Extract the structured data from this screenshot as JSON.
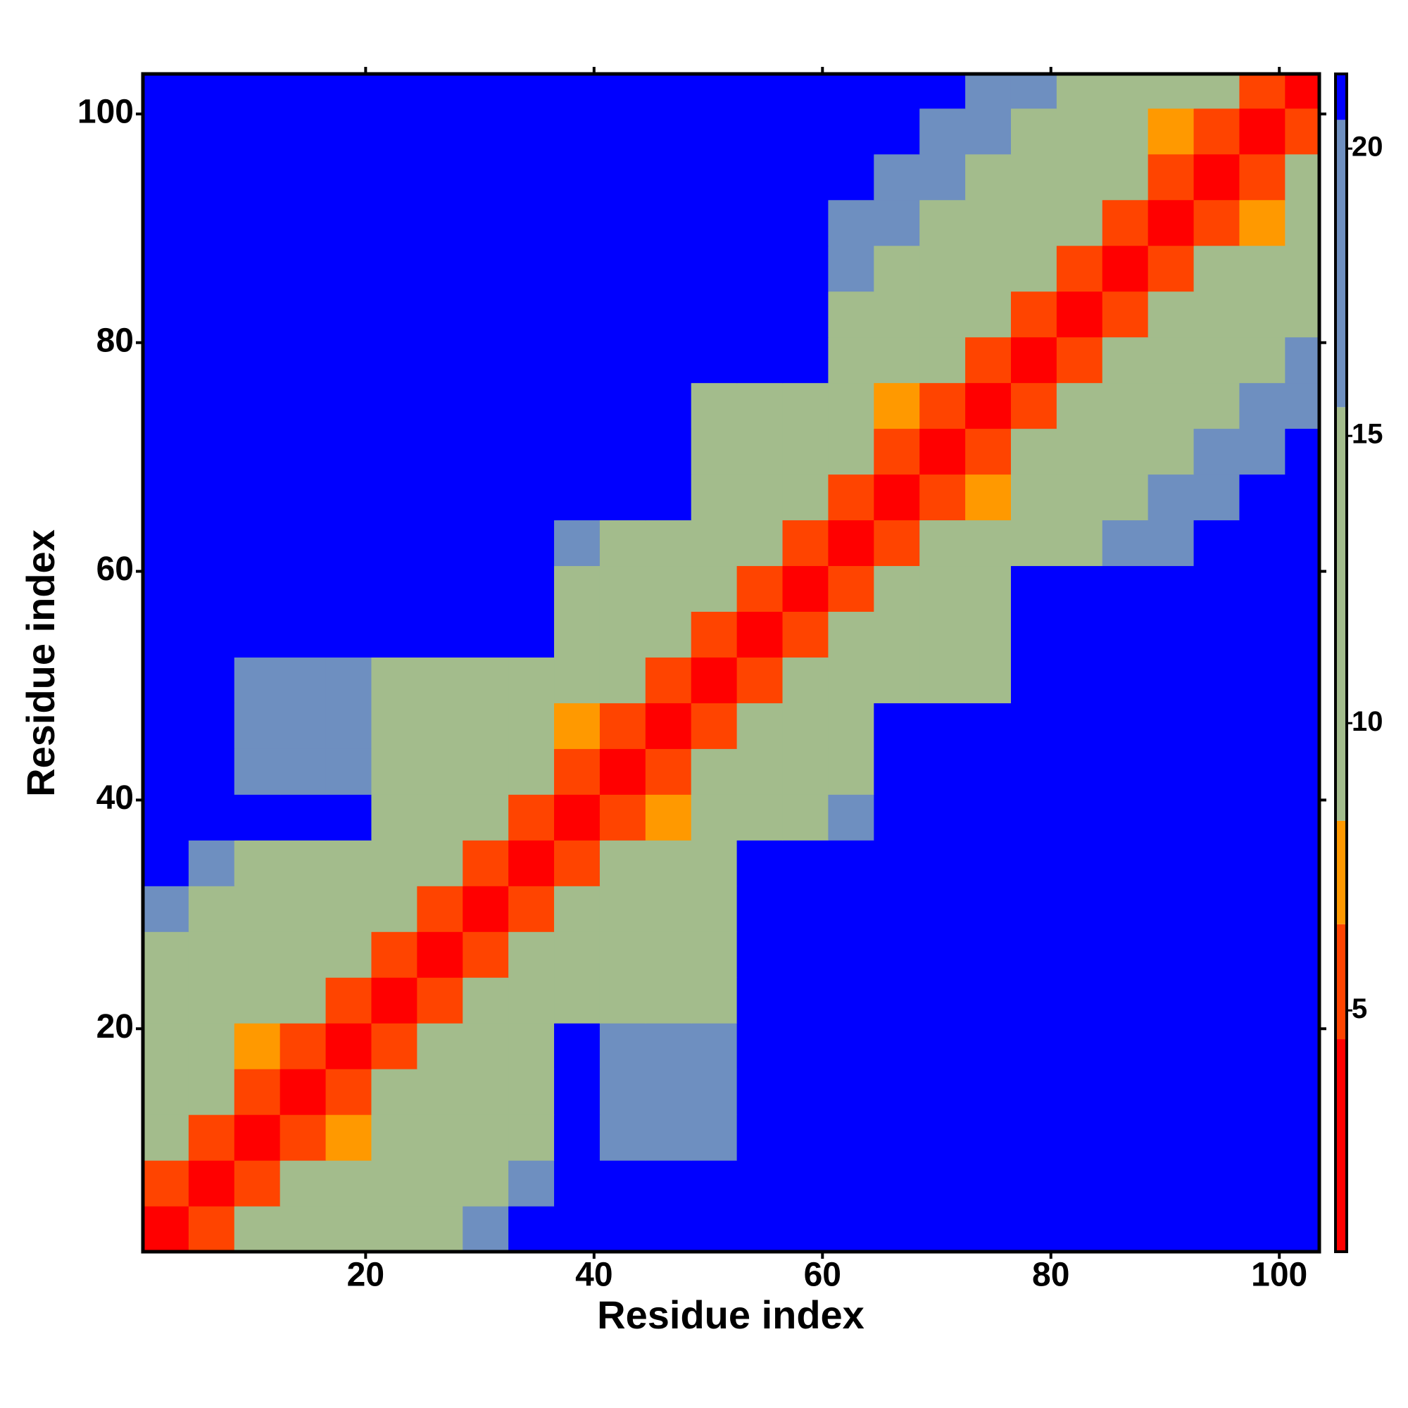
{
  "chart_data": {
    "type": "heatmap",
    "x_label": "Residue index",
    "y_label": "Residue index",
    "xlim": [
      0.5,
      103.5
    ],
    "ylim": [
      0.5,
      103.5
    ],
    "xticks": [
      20,
      40,
      60,
      80,
      100
    ],
    "yticks": [
      20,
      40,
      60,
      80,
      100
    ],
    "xbins": [
      0.5,
      4.5,
      8.5,
      12.5,
      16.5,
      20.5,
      24.5,
      28.5,
      32.5,
      36.5,
      40.5,
      44.5,
      48.5,
      52.5,
      56.5,
      60.5,
      64.5,
      68.5,
      72.5,
      76.5,
      80.5,
      84.5,
      88.5,
      92.5,
      96.5,
      100.5,
      103.5
    ],
    "ybins": [
      0.5,
      4.5,
      8.5,
      12.5,
      16.5,
      20.5,
      24.5,
      28.5,
      32.5,
      36.5,
      40.5,
      44.5,
      48.5,
      52.5,
      56.5,
      60.5,
      64.5,
      68.5,
      72.5,
      76.5,
      80.5,
      84.5,
      88.5,
      92.5,
      96.5,
      100.5,
      103.5
    ],
    "zlim": [
      0.8,
      21.3
    ],
    "zticks": [
      5,
      10,
      15,
      20
    ],
    "colorscale": [
      {
        "value": 0.8,
        "color": "#ff0000"
      },
      {
        "value": 4.5,
        "color": "#ff4400"
      },
      {
        "value": 6.5,
        "color": "#ff9900"
      },
      {
        "value": 8.3,
        "color": "#a3bc8c"
      },
      {
        "value": 15.5,
        "color": "#6e8fc0"
      },
      {
        "value": 20.5,
        "color": "#0000ff"
      }
    ],
    "z": [
      [
        2,
        6,
        10,
        13,
        15,
        15,
        15,
        18,
        21,
        21,
        21,
        21,
        21,
        21,
        21,
        21,
        21,
        21,
        21,
        21,
        21,
        21,
        21,
        21,
        21,
        21
      ],
      [
        6,
        2,
        6,
        10,
        13,
        15,
        15,
        15,
        18,
        21,
        21,
        21,
        21,
        21,
        21,
        21,
        21,
        21,
        21,
        21,
        21,
        21,
        21,
        21,
        21,
        21
      ],
      [
        10,
        6,
        2,
        6,
        7,
        13,
        15,
        15,
        15,
        21,
        19,
        19,
        19,
        21,
        21,
        21,
        21,
        21,
        21,
        21,
        21,
        21,
        21,
        21,
        21,
        21
      ],
      [
        13,
        10,
        6,
        2,
        6,
        10,
        13,
        15,
        15,
        21,
        19,
        19,
        19,
        21,
        21,
        21,
        21,
        21,
        21,
        21,
        21,
        21,
        21,
        21,
        21,
        21
      ],
      [
        15,
        13,
        7,
        6,
        2,
        6,
        10,
        13,
        15,
        21,
        19,
        19,
        19,
        21,
        21,
        21,
        21,
        21,
        21,
        21,
        21,
        21,
        21,
        21,
        21,
        21
      ],
      [
        15,
        15,
        13,
        10,
        6,
        2,
        6,
        10,
        13,
        14,
        14,
        14,
        14,
        21,
        21,
        21,
        21,
        21,
        21,
        21,
        21,
        21,
        21,
        21,
        21,
        21
      ],
      [
        15,
        15,
        15,
        13,
        10,
        6,
        2,
        6,
        10,
        13,
        14,
        14,
        14,
        21,
        21,
        21,
        21,
        21,
        21,
        21,
        21,
        21,
        21,
        21,
        21,
        21
      ],
      [
        18,
        15,
        15,
        15,
        13,
        10,
        6,
        2,
        6,
        10,
        13,
        14,
        14,
        21,
        21,
        21,
        21,
        21,
        21,
        21,
        21,
        21,
        21,
        21,
        21,
        21
      ],
      [
        21,
        18,
        15,
        15,
        15,
        13,
        10,
        6,
        2,
        6,
        10,
        13,
        14,
        21,
        21,
        21,
        21,
        21,
        21,
        21,
        21,
        21,
        21,
        21,
        21,
        21
      ],
      [
        21,
        21,
        21,
        21,
        21,
        14,
        13,
        10,
        6,
        2,
        6,
        7,
        13,
        14,
        14,
        18,
        21,
        21,
        21,
        21,
        21,
        21,
        21,
        21,
        21,
        21
      ],
      [
        21,
        21,
        19,
        19,
        19,
        14,
        14,
        13,
        10,
        6,
        2,
        6,
        10,
        13,
        14,
        14,
        21,
        21,
        21,
        21,
        21,
        21,
        21,
        21,
        21,
        21
      ],
      [
        21,
        21,
        19,
        19,
        19,
        14,
        14,
        14,
        13,
        7,
        6,
        2,
        6,
        10,
        13,
        14,
        21,
        21,
        21,
        21,
        21,
        21,
        21,
        21,
        21,
        21
      ],
      [
        21,
        21,
        19,
        19,
        19,
        14,
        14,
        14,
        14,
        13,
        10,
        6,
        2,
        6,
        10,
        13,
        14,
        14,
        14,
        21,
        21,
        21,
        21,
        21,
        21,
        21
      ],
      [
        21,
        21,
        21,
        21,
        21,
        21,
        21,
        21,
        21,
        14,
        13,
        10,
        6,
        2,
        6,
        10,
        13,
        14,
        14,
        21,
        21,
        21,
        21,
        21,
        21,
        21
      ],
      [
        21,
        21,
        21,
        21,
        21,
        21,
        21,
        21,
        21,
        14,
        14,
        13,
        10,
        6,
        2,
        6,
        10,
        13,
        14,
        21,
        21,
        21,
        21,
        21,
        21,
        21
      ],
      [
        21,
        21,
        21,
        21,
        21,
        21,
        21,
        21,
        21,
        18,
        14,
        14,
        13,
        10,
        6,
        2,
        6,
        10,
        13,
        14,
        14,
        18,
        18,
        21,
        21,
        21
      ],
      [
        21,
        21,
        21,
        21,
        21,
        21,
        21,
        21,
        21,
        21,
        21,
        21,
        14,
        13,
        10,
        6,
        2,
        6,
        7,
        13,
        14,
        14,
        18,
        18,
        21,
        21
      ],
      [
        21,
        21,
        21,
        21,
        21,
        21,
        21,
        21,
        21,
        21,
        21,
        21,
        14,
        14,
        13,
        10,
        6,
        2,
        6,
        10,
        13,
        14,
        14,
        18,
        18,
        21
      ],
      [
        21,
        21,
        21,
        21,
        21,
        21,
        21,
        21,
        21,
        21,
        21,
        21,
        14,
        14,
        14,
        13,
        7,
        6,
        2,
        6,
        10,
        13,
        14,
        14,
        18,
        18
      ],
      [
        21,
        21,
        21,
        21,
        21,
        21,
        21,
        21,
        21,
        21,
        21,
        21,
        21,
        21,
        21,
        14,
        13,
        10,
        6,
        2,
        6,
        10,
        13,
        14,
        14,
        18
      ],
      [
        21,
        21,
        21,
        21,
        21,
        21,
        21,
        21,
        21,
        21,
        21,
        21,
        21,
        21,
        21,
        14,
        14,
        13,
        10,
        6,
        2,
        6,
        10,
        13,
        14,
        14
      ],
      [
        21,
        21,
        21,
        21,
        21,
        21,
        21,
        21,
        21,
        21,
        21,
        21,
        21,
        21,
        21,
        18,
        14,
        14,
        13,
        10,
        6,
        2,
        6,
        10,
        13,
        14
      ],
      [
        21,
        21,
        21,
        21,
        21,
        21,
        21,
        21,
        21,
        21,
        21,
        21,
        21,
        21,
        21,
        18,
        18,
        14,
        14,
        13,
        10,
        6,
        2,
        6,
        7,
        13
      ],
      [
        21,
        21,
        21,
        21,
        21,
        21,
        21,
        21,
        21,
        21,
        21,
        21,
        21,
        21,
        21,
        21,
        18,
        18,
        14,
        14,
        13,
        10,
        6,
        2,
        6,
        10
      ],
      [
        21,
        21,
        21,
        21,
        21,
        21,
        21,
        21,
        21,
        21,
        21,
        21,
        21,
        21,
        21,
        21,
        21,
        18,
        18,
        14,
        14,
        13,
        7,
        6,
        2,
        6
      ],
      [
        21,
        21,
        21,
        21,
        21,
        21,
        21,
        21,
        21,
        21,
        21,
        21,
        21,
        21,
        21,
        21,
        21,
        21,
        18,
        18,
        14,
        14,
        13,
        10,
        6,
        2
      ]
    ]
  }
}
